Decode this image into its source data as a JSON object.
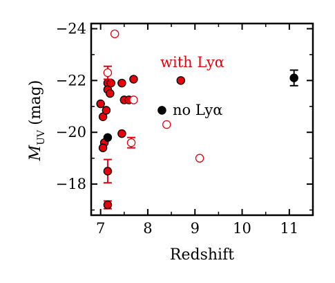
{
  "chart_data": {
    "type": "scatter",
    "xlabel": "Redshift",
    "ylabel": "M",
    "ylabel_subscript": "UV",
    "ylabel_unit": " (mag)",
    "xlim": [
      6.8,
      11.5
    ],
    "ylim": [
      -16.8,
      -24.2
    ],
    "y_inverted": true,
    "x_ticks": [
      7,
      8,
      9,
      10,
      11
    ],
    "y_ticks": [
      -18,
      -20,
      -22,
      -24
    ],
    "x_tick_labels": [
      "7",
      "8",
      "9",
      "10",
      "11"
    ],
    "y_tick_labels": [
      "−18",
      "−20",
      "−22",
      "−24"
    ],
    "colors": {
      "lya": "#e8000b",
      "no_lya": "#000000",
      "edge": "#000000"
    },
    "annotations": [
      {
        "text": "with Lyα",
        "color": "#e8000b"
      },
      {
        "text": "no Lyα",
        "color": "#000000"
      }
    ],
    "series": [
      {
        "marker": "filled-circle",
        "points": [
          {
            "x": 7.0,
            "y": -21.1
          },
          {
            "x": 7.05,
            "y": -20.6
          },
          {
            "x": 7.08,
            "y": -19.6
          },
          {
            "x": 7.05,
            "y": -19.4
          },
          {
            "x": 7.12,
            "y": -20.85
          },
          {
            "x": 7.15,
            "y": -21.9
          },
          {
            "x": 7.15,
            "y": -21.65
          },
          {
            "x": 7.2,
            "y": -21.5
          },
          {
            "x": 7.22,
            "y": -21.9
          },
          {
            "x": 7.15,
            "y": -18.5,
            "yerr": 0.45
          },
          {
            "x": 7.15,
            "y": -17.2,
            "yerr": 0.15
          },
          {
            "x": 7.45,
            "y": -21.9
          },
          {
            "x": 7.5,
            "y": -21.25
          },
          {
            "x": 7.6,
            "y": -21.25
          },
          {
            "x": 7.7,
            "y": -22.05
          },
          {
            "x": 7.45,
            "y": -19.95
          },
          {
            "x": 8.7,
            "y": -22.0
          }
        ]
      },
      {
        "marker": "open-circle",
        "points": [
          {
            "x": 7.3,
            "y": -23.8
          },
          {
            "x": 7.15,
            "y": -22.3,
            "yerr": 0.25
          },
          {
            "x": 7.7,
            "y": -21.25
          },
          {
            "x": 7.65,
            "y": -19.6,
            "yerr": 0.2
          },
          {
            "x": 8.4,
            "y": -20.3
          },
          {
            "x": 9.1,
            "y": -19.0
          }
        ]
      },
      {
        "marker": "filled-circle",
        "points": [
          {
            "x": 7.15,
            "y": -19.8
          },
          {
            "x": 8.3,
            "y": -20.85
          },
          {
            "x": 11.1,
            "y": -22.1,
            "yerr": 0.3
          }
        ]
      }
    ]
  }
}
